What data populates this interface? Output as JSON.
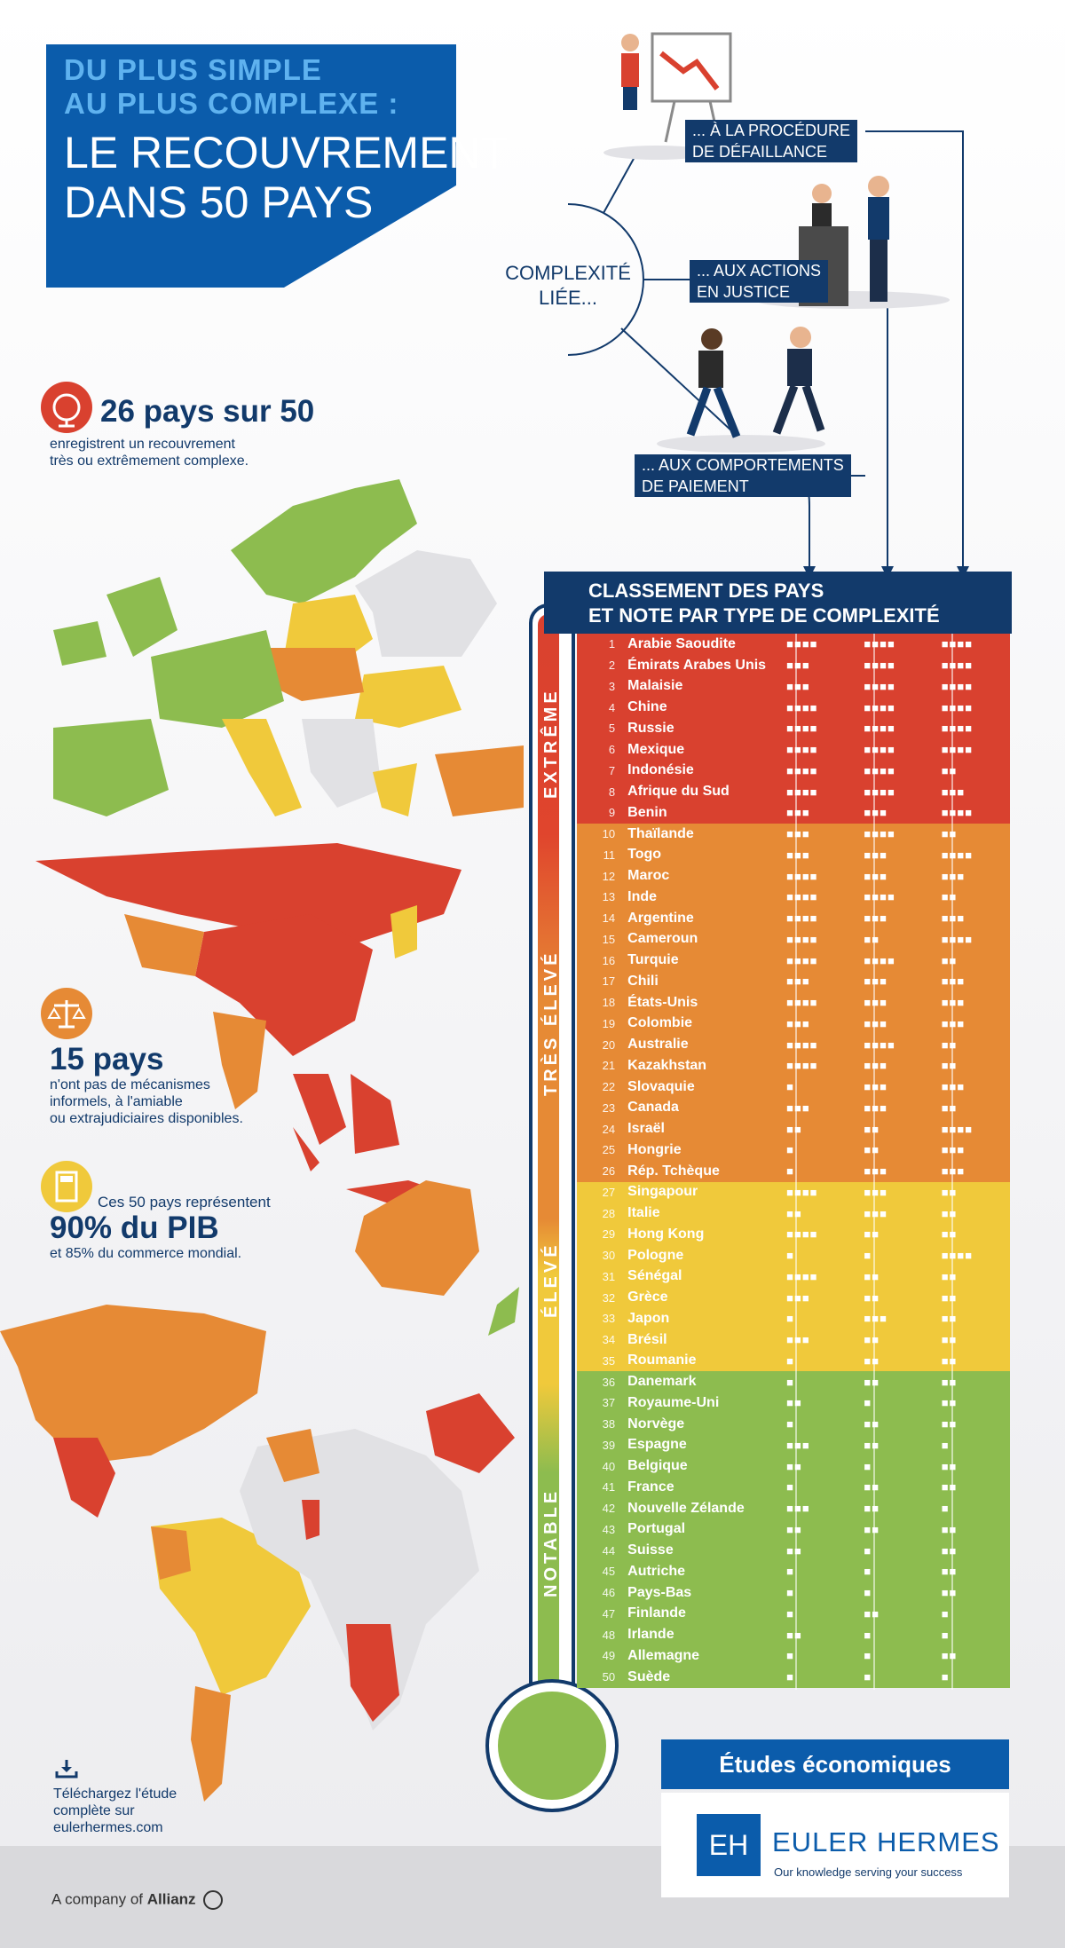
{
  "title": {
    "line1": "DU PLUS SIMPLE",
    "line2": "AU PLUS COMPLEXE :",
    "line3": "LE RECOUVREMENT",
    "line4": "DANS 50 PAYS"
  },
  "complexity": {
    "center_line1": "COMPLEXITÉ",
    "center_line2": "LIÉE...",
    "a1": "... À LA PROCÉDURE",
    "a2": "DE DÉFAILLANCE",
    "b1": "... AUX ACTIONS",
    "b2": "EN JUSTICE",
    "c1": "... AUX COMPORTEMENTS",
    "c2": "DE PAIEMENT"
  },
  "stats": {
    "s1_big": "26 pays sur 50",
    "s1_l1": "enregistrent un recouvrement",
    "s1_l2": "très ou extrêmement complexe.",
    "s2_big": "15 pays",
    "s2_l1": "n'ont pas de mécanismes",
    "s2_l2": "informels, à l'amiable",
    "s2_l3": "ou extrajudiciaires disponibles.",
    "s3_l0": "Ces 50 pays représentent",
    "s3_big": "90% du PIB",
    "s3_l1": "et 85% du commerce mondial."
  },
  "table": {
    "title1": "CLASSEMENT DES PAYS",
    "title2": "ET NOTE PAR TYPE DE COMPLEXITÉ",
    "levels": [
      "EXTRÊME",
      "TRÈS ÉLEVÉ",
      "ÉLEVÉ",
      "NOTABLE"
    ],
    "colors": {
      "extreme": "#d9412f",
      "tres_eleve": "#e68a35",
      "eleve": "#f0c93b",
      "notable": "#8dbc4f"
    },
    "rows": [
      {
        "rank": "1",
        "name": "Arabie Saoudite",
        "a": "■■■■",
        "b": "■■■■",
        "c": "■■■■",
        "lvl": "extreme"
      },
      {
        "rank": "2",
        "name": "Émirats Arabes Unis",
        "a": "■■■",
        "b": "■■■■",
        "c": "■■■■",
        "lvl": "extreme"
      },
      {
        "rank": "3",
        "name": "Malaisie",
        "a": "■■■",
        "b": "■■■■",
        "c": "■■■■",
        "lvl": "extreme"
      },
      {
        "rank": "4",
        "name": "Chine",
        "a": "■■■■",
        "b": "■■■■",
        "c": "■■■■",
        "lvl": "extreme"
      },
      {
        "rank": "5",
        "name": "Russie",
        "a": "■■■■",
        "b": "■■■■",
        "c": "■■■■",
        "lvl": "extreme"
      },
      {
        "rank": "6",
        "name": "Mexique",
        "a": "■■■■",
        "b": "■■■■",
        "c": "■■■■",
        "lvl": "extreme"
      },
      {
        "rank": "7",
        "name": "Indonésie",
        "a": "■■■■",
        "b": "■■■■",
        "c": "■■",
        "lvl": "extreme"
      },
      {
        "rank": "8",
        "name": "Afrique du Sud",
        "a": "■■■■",
        "b": "■■■■",
        "c": "■■■",
        "lvl": "extreme"
      },
      {
        "rank": "9",
        "name": "Benin",
        "a": "■■■",
        "b": "■■■",
        "c": "■■■■",
        "lvl": "extreme"
      },
      {
        "rank": "10",
        "name": "Thaïlande",
        "a": "■■■",
        "b": "■■■■",
        "c": "■■",
        "lvl": "tres_eleve"
      },
      {
        "rank": "11",
        "name": "Togo",
        "a": "■■■",
        "b": "■■■",
        "c": "■■■■",
        "lvl": "tres_eleve"
      },
      {
        "rank": "12",
        "name": "Maroc",
        "a": "■■■■",
        "b": "■■■",
        "c": "■■■",
        "lvl": "tres_eleve"
      },
      {
        "rank": "13",
        "name": "Inde",
        "a": "■■■■",
        "b": "■■■■",
        "c": "■■",
        "lvl": "tres_eleve"
      },
      {
        "rank": "14",
        "name": "Argentine",
        "a": "■■■■",
        "b": "■■■",
        "c": "■■■",
        "lvl": "tres_eleve"
      },
      {
        "rank": "15",
        "name": "Cameroun",
        "a": "■■■■",
        "b": "■■",
        "c": "■■■■",
        "lvl": "tres_eleve"
      },
      {
        "rank": "16",
        "name": "Turquie",
        "a": "■■■■",
        "b": "■■■■",
        "c": "■■",
        "lvl": "tres_eleve"
      },
      {
        "rank": "17",
        "name": "Chili",
        "a": "■■■",
        "b": "■■■",
        "c": "■■■",
        "lvl": "tres_eleve"
      },
      {
        "rank": "18",
        "name": "États-Unis",
        "a": "■■■■",
        "b": "■■■",
        "c": "■■■",
        "lvl": "tres_eleve"
      },
      {
        "rank": "19",
        "name": "Colombie",
        "a": "■■■",
        "b": "■■■",
        "c": "■■■",
        "lvl": "tres_eleve"
      },
      {
        "rank": "20",
        "name": "Australie",
        "a": "■■■■",
        "b": "■■■■",
        "c": "■■",
        "lvl": "tres_eleve"
      },
      {
        "rank": "21",
        "name": "Kazakhstan",
        "a": "■■■■",
        "b": "■■■",
        "c": "■■",
        "lvl": "tres_eleve"
      },
      {
        "rank": "22",
        "name": "Slovaquie",
        "a": "■",
        "b": "■■■",
        "c": "■■■",
        "lvl": "tres_eleve"
      },
      {
        "rank": "23",
        "name": "Canada",
        "a": "■■■",
        "b": "■■■",
        "c": "■■",
        "lvl": "tres_eleve"
      },
      {
        "rank": "24",
        "name": "Israël",
        "a": "■■",
        "b": "■■",
        "c": "■■■■",
        "lvl": "tres_eleve"
      },
      {
        "rank": "25",
        "name": "Hongrie",
        "a": "■",
        "b": "■■",
        "c": "■■■",
        "lvl": "tres_eleve"
      },
      {
        "rank": "26",
        "name": "Rép. Tchèque",
        "a": "■",
        "b": "■■■",
        "c": "■■■",
        "lvl": "tres_eleve"
      },
      {
        "rank": "27",
        "name": "Singapour",
        "a": "■■■■",
        "b": "■■■",
        "c": "■■",
        "lvl": "eleve"
      },
      {
        "rank": "28",
        "name": "Italie",
        "a": "■■",
        "b": "■■■",
        "c": "■■",
        "lvl": "eleve"
      },
      {
        "rank": "29",
        "name": "Hong Kong",
        "a": "■■■■",
        "b": "■■",
        "c": "■■",
        "lvl": "eleve"
      },
      {
        "rank": "30",
        "name": "Pologne",
        "a": "■",
        "b": "■",
        "c": "■■■■",
        "lvl": "eleve"
      },
      {
        "rank": "31",
        "name": "Sénégal",
        "a": "■■■■",
        "b": "■■",
        "c": "■■",
        "lvl": "eleve"
      },
      {
        "rank": "32",
        "name": "Grèce",
        "a": "■■■",
        "b": "■■",
        "c": "■■",
        "lvl": "eleve"
      },
      {
        "rank": "33",
        "name": "Japon",
        "a": "■",
        "b": "■■■",
        "c": "■■",
        "lvl": "eleve"
      },
      {
        "rank": "34",
        "name": "Brésil",
        "a": "■■■",
        "b": "■■",
        "c": "■■",
        "lvl": "eleve"
      },
      {
        "rank": "35",
        "name": "Roumanie",
        "a": "■",
        "b": "■■",
        "c": "■■",
        "lvl": "eleve"
      },
      {
        "rank": "36",
        "name": "Danemark",
        "a": "■",
        "b": "■■",
        "c": "■■",
        "lvl": "notable"
      },
      {
        "rank": "37",
        "name": "Royaume-Uni",
        "a": "■■",
        "b": "■",
        "c": "■■",
        "lvl": "notable"
      },
      {
        "rank": "38",
        "name": "Norvège",
        "a": "■",
        "b": "■■",
        "c": "■■",
        "lvl": "notable"
      },
      {
        "rank": "39",
        "name": "Espagne",
        "a": "■■■",
        "b": "■■",
        "c": "■",
        "lvl": "notable"
      },
      {
        "rank": "40",
        "name": "Belgique",
        "a": "■■",
        "b": "■",
        "c": "■■",
        "lvl": "notable"
      },
      {
        "rank": "41",
        "name": "France",
        "a": "■",
        "b": "■■",
        "c": "■■",
        "lvl": "notable"
      },
      {
        "rank": "42",
        "name": "Nouvelle Zélande",
        "a": "■■■",
        "b": "■■",
        "c": "■",
        "lvl": "notable"
      },
      {
        "rank": "43",
        "name": "Portugal",
        "a": "■■",
        "b": "■■",
        "c": "■■",
        "lvl": "notable"
      },
      {
        "rank": "44",
        "name": "Suisse",
        "a": "■■",
        "b": "■",
        "c": "■■",
        "lvl": "notable"
      },
      {
        "rank": "45",
        "name": "Autriche",
        "a": "■",
        "b": "■",
        "c": "■■",
        "lvl": "notable"
      },
      {
        "rank": "46",
        "name": "Pays-Bas",
        "a": "■",
        "b": "■",
        "c": "■■",
        "lvl": "notable"
      },
      {
        "rank": "47",
        "name": "Finlande",
        "a": "■",
        "b": "■■",
        "c": "■",
        "lvl": "notable"
      },
      {
        "rank": "48",
        "name": "Irlande",
        "a": "■■",
        "b": "■",
        "c": "■",
        "lvl": "notable"
      },
      {
        "rank": "49",
        "name": "Allemagne",
        "a": "■",
        "b": "■",
        "c": "■■",
        "lvl": "notable"
      },
      {
        "rank": "50",
        "name": "Suède",
        "a": "■",
        "b": "■",
        "c": "■",
        "lvl": "notable"
      }
    ]
  },
  "download": {
    "l1": "Téléchargez l'étude",
    "l2": "complète sur",
    "l3": "eulerhermes.com"
  },
  "brand": {
    "etudes": "Études économiques",
    "logo": "EH",
    "name": "EULER HERMES",
    "tagline": "Our knowledge serving your success",
    "footer_prefix": "A company of",
    "footer_brand": "Allianz"
  }
}
